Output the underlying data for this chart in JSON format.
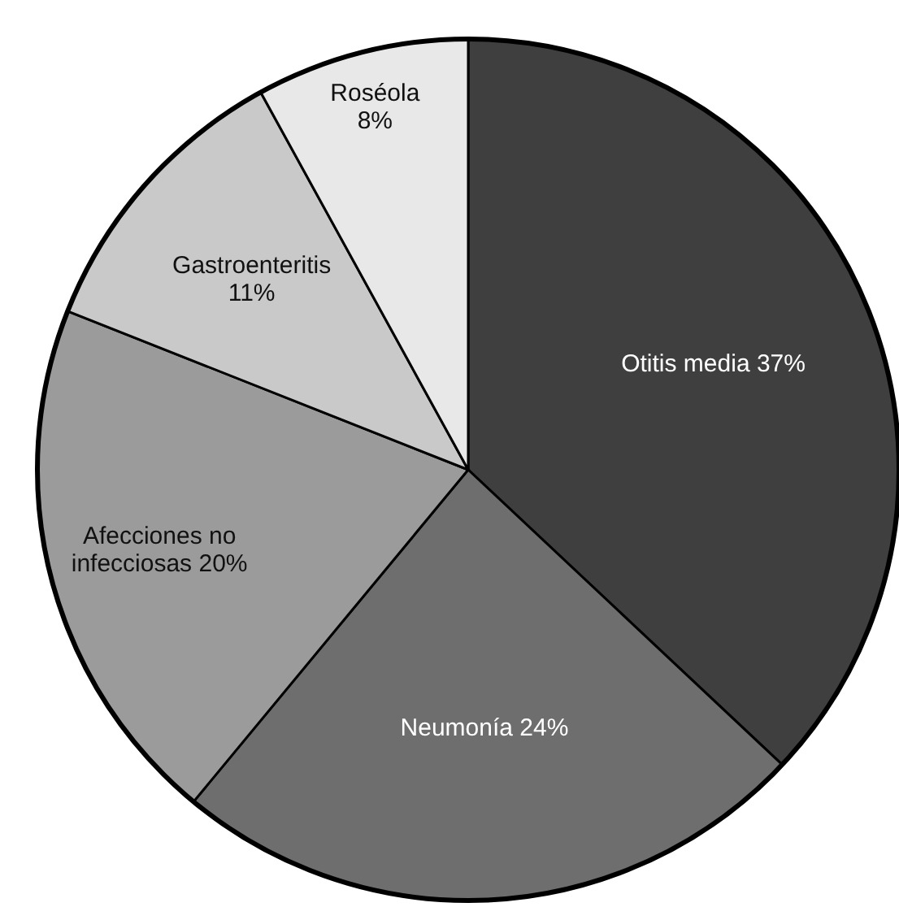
{
  "chart_data": {
    "type": "pie",
    "categories": [
      "Otitis media",
      "Neumonía",
      "Afecciones no infecciosas",
      "Gastroenteritis",
      "Roséola"
    ],
    "values": [
      37,
      24,
      20,
      11,
      8
    ],
    "colors": [
      "#3f3f3f",
      "#6e6e6e",
      "#9b9b9b",
      "#c9c9c9",
      "#e8e8e8"
    ],
    "value_labels": [
      "37%",
      "24%",
      "20%",
      "11%",
      "8%"
    ]
  }
}
